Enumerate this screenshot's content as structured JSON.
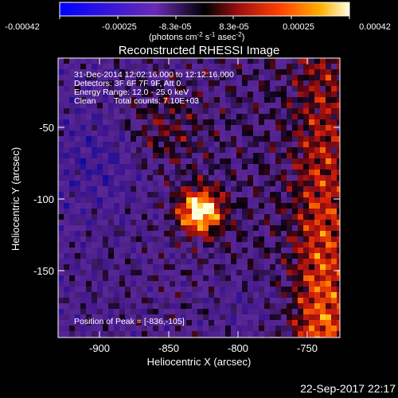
{
  "colorbar": {
    "tick_labels": [
      "-0.00042",
      "-0.00025",
      "-8.3e-05",
      "8.3e-05",
      "0.00025",
      "0.00042"
    ],
    "units_text": "(photons cm",
    "units_exp1": "-2",
    "units_mid": " s",
    "units_exp2": "-1",
    "units_tail": " asec",
    "units_exp3": "-2",
    "units_close": ")"
  },
  "plot": {
    "title": "Reconstructed RHESSI Image",
    "xlabel": "Heliocentric X (arcsec)",
    "ylabel": "Heliocentric Y (arcsec)",
    "x_ticks": [
      "-900",
      "-850",
      "-800",
      "-750"
    ],
    "y_ticks": [
      "-50",
      "-100",
      "-150"
    ],
    "xlim": [
      -928,
      -732
    ],
    "ylim": [
      -196,
      0
    ]
  },
  "annotation": {
    "line1": "31-Dec-2014 12:02:16.000 to 12:12:16.000",
    "line2": "Detectors: 3F 6F 7F 9F, Att 0",
    "line3": "Energy Range: 12.0 - 25.0 keV",
    "line4_a": "Clean",
    "line4_b": "Total counts: 7.10E+03",
    "peak": "Position of Peak = [-836,-105]"
  },
  "footer": {
    "timestamp": "22-Sep-2017 22:17"
  },
  "colors": {
    "background": "#000000",
    "text": "#ffffff"
  }
}
